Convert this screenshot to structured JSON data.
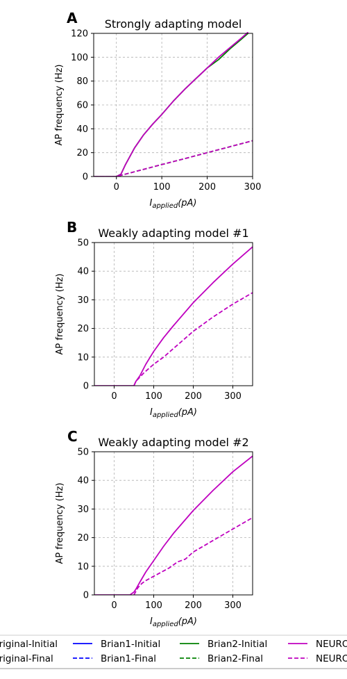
{
  "charts": [
    {
      "letter": "A",
      "title": "Strongly adapting model",
      "ylabel": "AP frequency (Hz)",
      "xlabel_main": "I",
      "xlabel_sub": "applied",
      "xlabel_unit": "(pA)",
      "xlim": [
        -50,
        300
      ],
      "ylim": [
        0,
        120
      ],
      "xticks": [
        0,
        100,
        200,
        300
      ],
      "yticks": [
        0,
        20,
        40,
        60,
        80,
        100,
        120
      ]
    },
    {
      "letter": "B",
      "title": "Weakly adapting model #1",
      "ylabel": "AP frequency (Hz)",
      "xlabel_main": "I",
      "xlabel_sub": "applied",
      "xlabel_unit": "(pA)",
      "xlim": [
        -50,
        350
      ],
      "ylim": [
        0,
        50
      ],
      "xticks": [
        0,
        100,
        200,
        300
      ],
      "yticks": [
        0,
        10,
        20,
        30,
        40,
        50
      ]
    },
    {
      "letter": "C",
      "title": "Weakly adapting model #2",
      "ylabel": "AP frequency (Hz)",
      "xlabel_main": "I",
      "xlabel_sub": "applied",
      "xlabel_unit": "(pA)",
      "xlim": [
        -50,
        350
      ],
      "ylim": [
        0,
        50
      ],
      "xticks": [
        0,
        100,
        200,
        300
      ],
      "yticks": [
        0,
        10,
        20,
        30,
        40,
        50
      ]
    }
  ],
  "chart_data": [
    {
      "type": "line",
      "grid": true,
      "series": [
        {
          "name": "Brian2-Initial",
          "color": "#008000",
          "dash": false,
          "x": [
            -50,
            0,
            10,
            20,
            40,
            60,
            80,
            100,
            125,
            150,
            175,
            200,
            225,
            250,
            275,
            290
          ],
          "y": [
            0,
            0,
            2,
            10,
            24,
            35,
            44,
            52,
            63,
            73,
            82,
            91,
            98,
            107,
            115,
            120
          ]
        },
        {
          "name": "NEURON-Initial",
          "color": "#bf00bf",
          "dash": false,
          "x": [
            -50,
            0,
            10,
            20,
            40,
            60,
            80,
            100,
            125,
            150,
            175,
            200,
            225,
            250,
            275,
            290
          ],
          "y": [
            0,
            0,
            2,
            10,
            24,
            35,
            44,
            52,
            63,
            73,
            82,
            91,
            100,
            108,
            116,
            121
          ]
        },
        {
          "name": "Brian2-Final",
          "color": "#008000",
          "dash": true,
          "x": [
            -50,
            0,
            10,
            50,
            100,
            150,
            200,
            250,
            300
          ],
          "y": [
            0,
            0,
            1,
            5,
            10,
            15,
            20,
            25,
            30
          ]
        },
        {
          "name": "NEURON-Final",
          "color": "#bf00bf",
          "dash": true,
          "x": [
            -50,
            0,
            10,
            50,
            100,
            150,
            200,
            250,
            300
          ],
          "y": [
            0,
            0,
            1,
            5,
            10,
            15,
            20,
            25,
            30
          ]
        }
      ]
    },
    {
      "type": "line",
      "grid": true,
      "series": [
        {
          "name": "NEURON-Initial",
          "color": "#bf00bf",
          "dash": false,
          "x": [
            -50,
            50,
            55,
            65,
            80,
            100,
            125,
            150,
            200,
            250,
            300,
            350
          ],
          "y": [
            0,
            0,
            1.5,
            3.5,
            7.5,
            12,
            16.8,
            21,
            29,
            36,
            42.5,
            48.5
          ]
        },
        {
          "name": "NEURON-Final",
          "color": "#bf00bf",
          "dash": true,
          "x": [
            50,
            55,
            65,
            75,
            100,
            125,
            150,
            200,
            250,
            300,
            350
          ],
          "y": [
            0,
            1.5,
            3,
            4.5,
            7.5,
            10,
            13,
            19,
            24,
            28.5,
            32.5
          ]
        }
      ]
    },
    {
      "type": "line",
      "grid": true,
      "series": [
        {
          "name": "NEURON-Initial",
          "color": "#bf00bf",
          "dash": false,
          "x": [
            -50,
            40,
            50,
            55,
            65,
            80,
            100,
            125,
            150,
            200,
            250,
            300,
            350
          ],
          "y": [
            0,
            0,
            1,
            2,
            4.5,
            8,
            12,
            17,
            21.5,
            29.5,
            36.5,
            43,
            48.5
          ]
        },
        {
          "name": "NEURON-Final",
          "color": "#bf00bf",
          "dash": true,
          "x": [
            50,
            60,
            70,
            80,
            100,
            120,
            140,
            160,
            180,
            200,
            225,
            250,
            300,
            350
          ],
          "y": [
            0,
            2.5,
            4,
            5,
            6.5,
            8,
            9.5,
            11.5,
            12.5,
            15,
            17,
            19,
            23,
            27
          ]
        }
      ]
    }
  ],
  "legend": {
    "items": [
      {
        "label": "Original-Initial",
        "color": "#000000",
        "dash": false
      },
      {
        "label": "Brian1-Initial",
        "color": "#0000ff",
        "dash": false
      },
      {
        "label": "Brian2-Initial",
        "color": "#008000",
        "dash": false
      },
      {
        "label": "NEURON-Initial",
        "color": "#bf00bf",
        "dash": false
      },
      {
        "label": "Original-Final",
        "color": "#000000",
        "dash": true
      },
      {
        "label": "Brian1-Final",
        "color": "#0000ff",
        "dash": true
      },
      {
        "label": "Brian2-Final",
        "color": "#008000",
        "dash": true
      },
      {
        "label": "NEURON-Final",
        "color": "#bf00bf",
        "dash": true
      }
    ]
  }
}
